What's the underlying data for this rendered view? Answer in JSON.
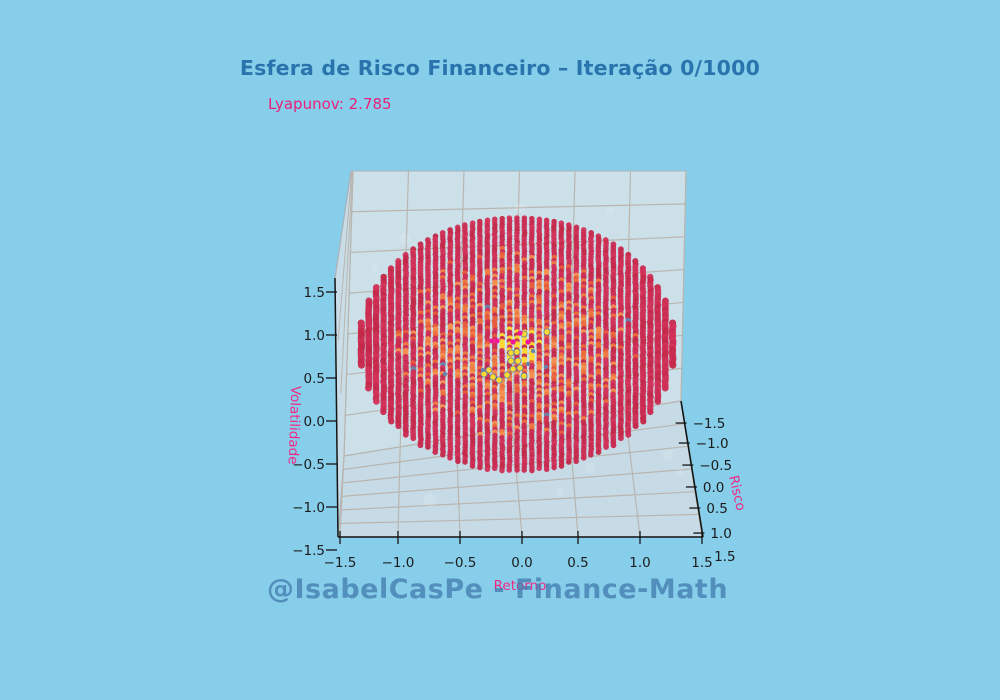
{
  "header": {
    "title": "Esfera de Risco Financeiro – Iteração 0/1000",
    "subtitle": "Lyapunov: 2.785"
  },
  "watermark": {
    "text": "@IsabelCasPe - Finance-Math"
  },
  "colors": {
    "background": "#87ceeb",
    "pane_wall": "#cce0ea",
    "pane_floor": "#c6dbe6",
    "pane_side": "#c9dde8",
    "grid": "#bab5af",
    "pane_edge": "#a9b3b9",
    "axis": "#141414",
    "tick_text": "#1c1c1c",
    "title_text": "#2a74ad",
    "pink_label": "#f02a84",
    "crimson_palette": [
      "#c92a50",
      "#ce2d54",
      "#c42848",
      "#d23158"
    ],
    "orange_palette": [
      "#ed6a39",
      "#f0793f",
      "#f58e4e",
      "#e85a3a"
    ],
    "yellow": "#ffd92e",
    "yellow_edge": "#5b7fa6",
    "magenta": "#f0189a",
    "bluegray": "#6484ad",
    "spot": "#ffffff"
  },
  "chart_data": {
    "type": "scatter",
    "projection": "3d",
    "title": "Esfera de Risco Financeiro – Iteração 0/1000",
    "subtitle": "Lyapunov: 2.785",
    "iteration_current": 0,
    "iteration_total": 1000,
    "lyapunov": 2.785,
    "xlabel": "Retorno",
    "ylabel": "Risco",
    "zlabel": "Volatilidade",
    "x_ticks": [
      "−1.5",
      "−1.0",
      "−0.5",
      "0.0",
      "0.5",
      "1.0",
      "1.5"
    ],
    "y_ticks": [
      "−1.5",
      "−1.0",
      "−0.5",
      "0.0",
      "0.5",
      "1.0",
      "1.5"
    ],
    "z_ticks": [
      "1.5",
      "1.0",
      "0.5",
      "0.0",
      "−0.5",
      "−1.0",
      "−1.5"
    ],
    "xlim": [
      -1.5,
      1.5
    ],
    "ylim": [
      -1.5,
      1.5
    ],
    "zlim": [
      -1.5,
      1.5
    ],
    "grid": true,
    "legend": false,
    "description": "Sphere of scatter points arranged in ~43 vertical meridian stripes; crimson shell, orange-hot interior density, yellow/magenta hot points at the core.",
    "sphere": {
      "columns": 43,
      "u_max": 0.985,
      "dot_step": 3,
      "dot_r": 2.75,
      "core_r2": 0.6,
      "orange_p": 0.52,
      "yellow_core_r2": 0.022,
      "seed": 1337
    },
    "highlights": {
      "yellow": [
        [
          511,
          353
        ],
        [
          517,
          352
        ],
        [
          511,
          361
        ],
        [
          518,
          361
        ],
        [
          513,
          369
        ],
        [
          507,
          375
        ],
        [
          520,
          368
        ],
        [
          524,
          376
        ],
        [
          489,
          370
        ],
        [
          493,
          377
        ],
        [
          499,
          380
        ],
        [
          484,
          374
        ],
        [
          524,
          334
        ],
        [
          547,
          332
        ]
      ],
      "magenta": [
        [
          492,
          341
        ],
        [
          497,
          341
        ],
        [
          520,
          333
        ],
        [
          528,
          342
        ],
        [
          513,
          342
        ]
      ],
      "bluegray": [
        [
          483,
          370
        ],
        [
          528,
          364
        ],
        [
          546,
          367
        ],
        [
          445,
          374
        ],
        [
          533,
          351
        ]
      ]
    },
    "faint_spots": [
      [
        375,
        268
      ],
      [
        405,
        239
      ],
      [
        447,
        410
      ],
      [
        560,
        492
      ],
      [
        590,
        468
      ],
      [
        640,
        330
      ],
      [
        680,
        472
      ],
      [
        520,
        208
      ],
      [
        365,
        330
      ],
      [
        610,
        210
      ],
      [
        668,
        455
      ],
      [
        430,
        500
      ]
    ]
  }
}
